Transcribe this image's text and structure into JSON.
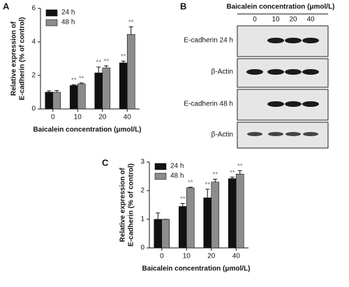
{
  "panels": [
    "A",
    "B",
    "C"
  ],
  "blot": {
    "title": "Baicalein concentration (μmol/L)",
    "lanes": [
      "0",
      "10",
      "20",
      "40"
    ],
    "rows": [
      "E-cadherin 24 h",
      "β-Actin",
      "E-cadherin 48 h",
      "β-Actin"
    ]
  },
  "chart_data": [
    {
      "type": "bar",
      "xlabel": "Baicalein concentration (μmol/L)",
      "ylabel": [
        "Relative expression of",
        "E-cadherin (% of control)"
      ],
      "categories": [
        "0",
        "10",
        "20",
        "40"
      ],
      "ylim": [
        0,
        6
      ],
      "yticks": [
        0,
        2,
        4,
        6
      ],
      "legend": "upper left",
      "series": [
        {
          "name": "24 h",
          "color": "#111111",
          "values": [
            1.0,
            1.4,
            2.15,
            2.75
          ],
          "errors": [
            0.08,
            0.05,
            0.35,
            0.1
          ],
          "significance": [
            null,
            "**",
            "**",
            "**"
          ]
        },
        {
          "name": "48 h",
          "color": "#8c8c8c",
          "values": [
            1.0,
            1.5,
            2.45,
            4.45
          ],
          "errors": [
            0.1,
            0.05,
            0.12,
            0.45
          ],
          "significance": [
            null,
            "**",
            "**",
            "**"
          ]
        }
      ]
    },
    {
      "type": "bar",
      "xlabel": "Baicalein concentration (μmol/L)",
      "ylabel": [
        "Relative expression of",
        "E-cadherin (% of control)"
      ],
      "categories": [
        "0",
        "10",
        "20",
        "40"
      ],
      "ylim": [
        0,
        3
      ],
      "yticks": [
        0,
        1,
        2,
        3
      ],
      "legend": "upper left",
      "series": [
        {
          "name": "24 h",
          "color": "#111111",
          "values": [
            1.0,
            1.45,
            1.75,
            2.42
          ],
          "errors": [
            0.22,
            0.1,
            0.3,
            0.05
          ],
          "significance": [
            null,
            "**",
            "**",
            "**"
          ]
        },
        {
          "name": "48 h",
          "color": "#8c8c8c",
          "values": [
            1.0,
            2.1,
            2.3,
            2.58
          ],
          "errors": [
            0.0,
            0.02,
            0.1,
            0.12
          ],
          "significance": [
            null,
            "**",
            "**",
            "**"
          ]
        }
      ]
    }
  ]
}
